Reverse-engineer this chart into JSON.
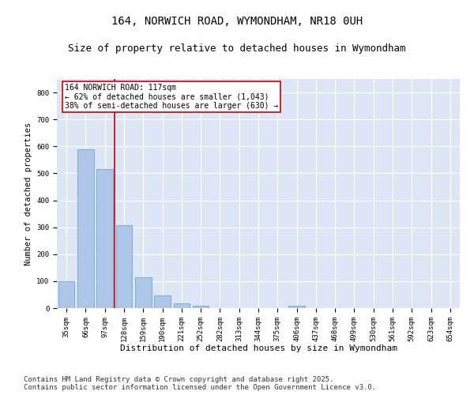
{
  "title1": "164, NORWICH ROAD, WYMONDHAM, NR18 0UH",
  "title2": "Size of property relative to detached houses in Wymondham",
  "xlabel": "Distribution of detached houses by size in Wymondham",
  "ylabel": "Number of detached properties",
  "categories": [
    "35sqm",
    "66sqm",
    "97sqm",
    "128sqm",
    "159sqm",
    "190sqm",
    "221sqm",
    "252sqm",
    "282sqm",
    "313sqm",
    "344sqm",
    "375sqm",
    "406sqm",
    "437sqm",
    "468sqm",
    "499sqm",
    "530sqm",
    "561sqm",
    "592sqm",
    "623sqm",
    "654sqm"
  ],
  "values": [
    100,
    590,
    515,
    308,
    115,
    48,
    18,
    10,
    0,
    0,
    0,
    0,
    10,
    0,
    0,
    0,
    0,
    0,
    0,
    0,
    0
  ],
  "bar_color": "#aec6e8",
  "bar_edge_color": "#5b9bd5",
  "vline_color": "#cc0000",
  "vline_x_idx": 2.5,
  "annotation_text": "164 NORWICH ROAD: 117sqm\n← 62% of detached houses are smaller (1,043)\n38% of semi-detached houses are larger (630) →",
  "annotation_box_color": "white",
  "annotation_box_edge": "#cc0000",
  "ylim": [
    0,
    850
  ],
  "yticks": [
    0,
    100,
    200,
    300,
    400,
    500,
    600,
    700,
    800
  ],
  "background_color": "#dce6f5",
  "grid_color": "white",
  "footer1": "Contains HM Land Registry data © Crown copyright and database right 2025.",
  "footer2": "Contains public sector information licensed under the Open Government Licence v3.0.",
  "title1_fontsize": 10,
  "title2_fontsize": 9,
  "xlabel_fontsize": 8,
  "ylabel_fontsize": 7.5,
  "tick_fontsize": 6.5,
  "annotation_fontsize": 7,
  "footer_fontsize": 6.5
}
